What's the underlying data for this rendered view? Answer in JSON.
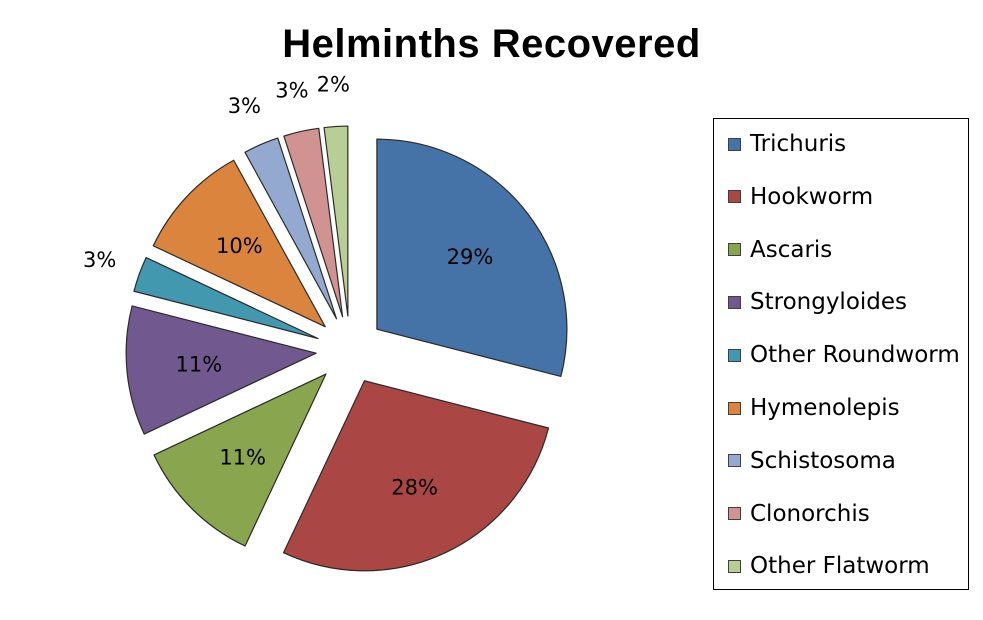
{
  "chart_data": {
    "type": "pie",
    "title": "Helminths Recovered",
    "legend_position": "right",
    "exploded": true,
    "categories": [
      "Trichuris",
      "Hookworm",
      "Ascaris",
      "Strongyloides",
      "Other Roundworm",
      "Hymenolepis",
      "Schistosoma",
      "Clonorchis",
      "Other Flatworm"
    ],
    "values": [
      29,
      28,
      11,
      11,
      3,
      10,
      3,
      3,
      2
    ],
    "labels": [
      "29%",
      "28%",
      "11%",
      "11%",
      "3%",
      "10%",
      "3%",
      "3%",
      "2%"
    ],
    "colors": [
      "#4572A7",
      "#AA4643",
      "#89A54E",
      "#71588F",
      "#4198AF",
      "#DB843D",
      "#93A9CF",
      "#D19392",
      "#B9CD96"
    ]
  }
}
